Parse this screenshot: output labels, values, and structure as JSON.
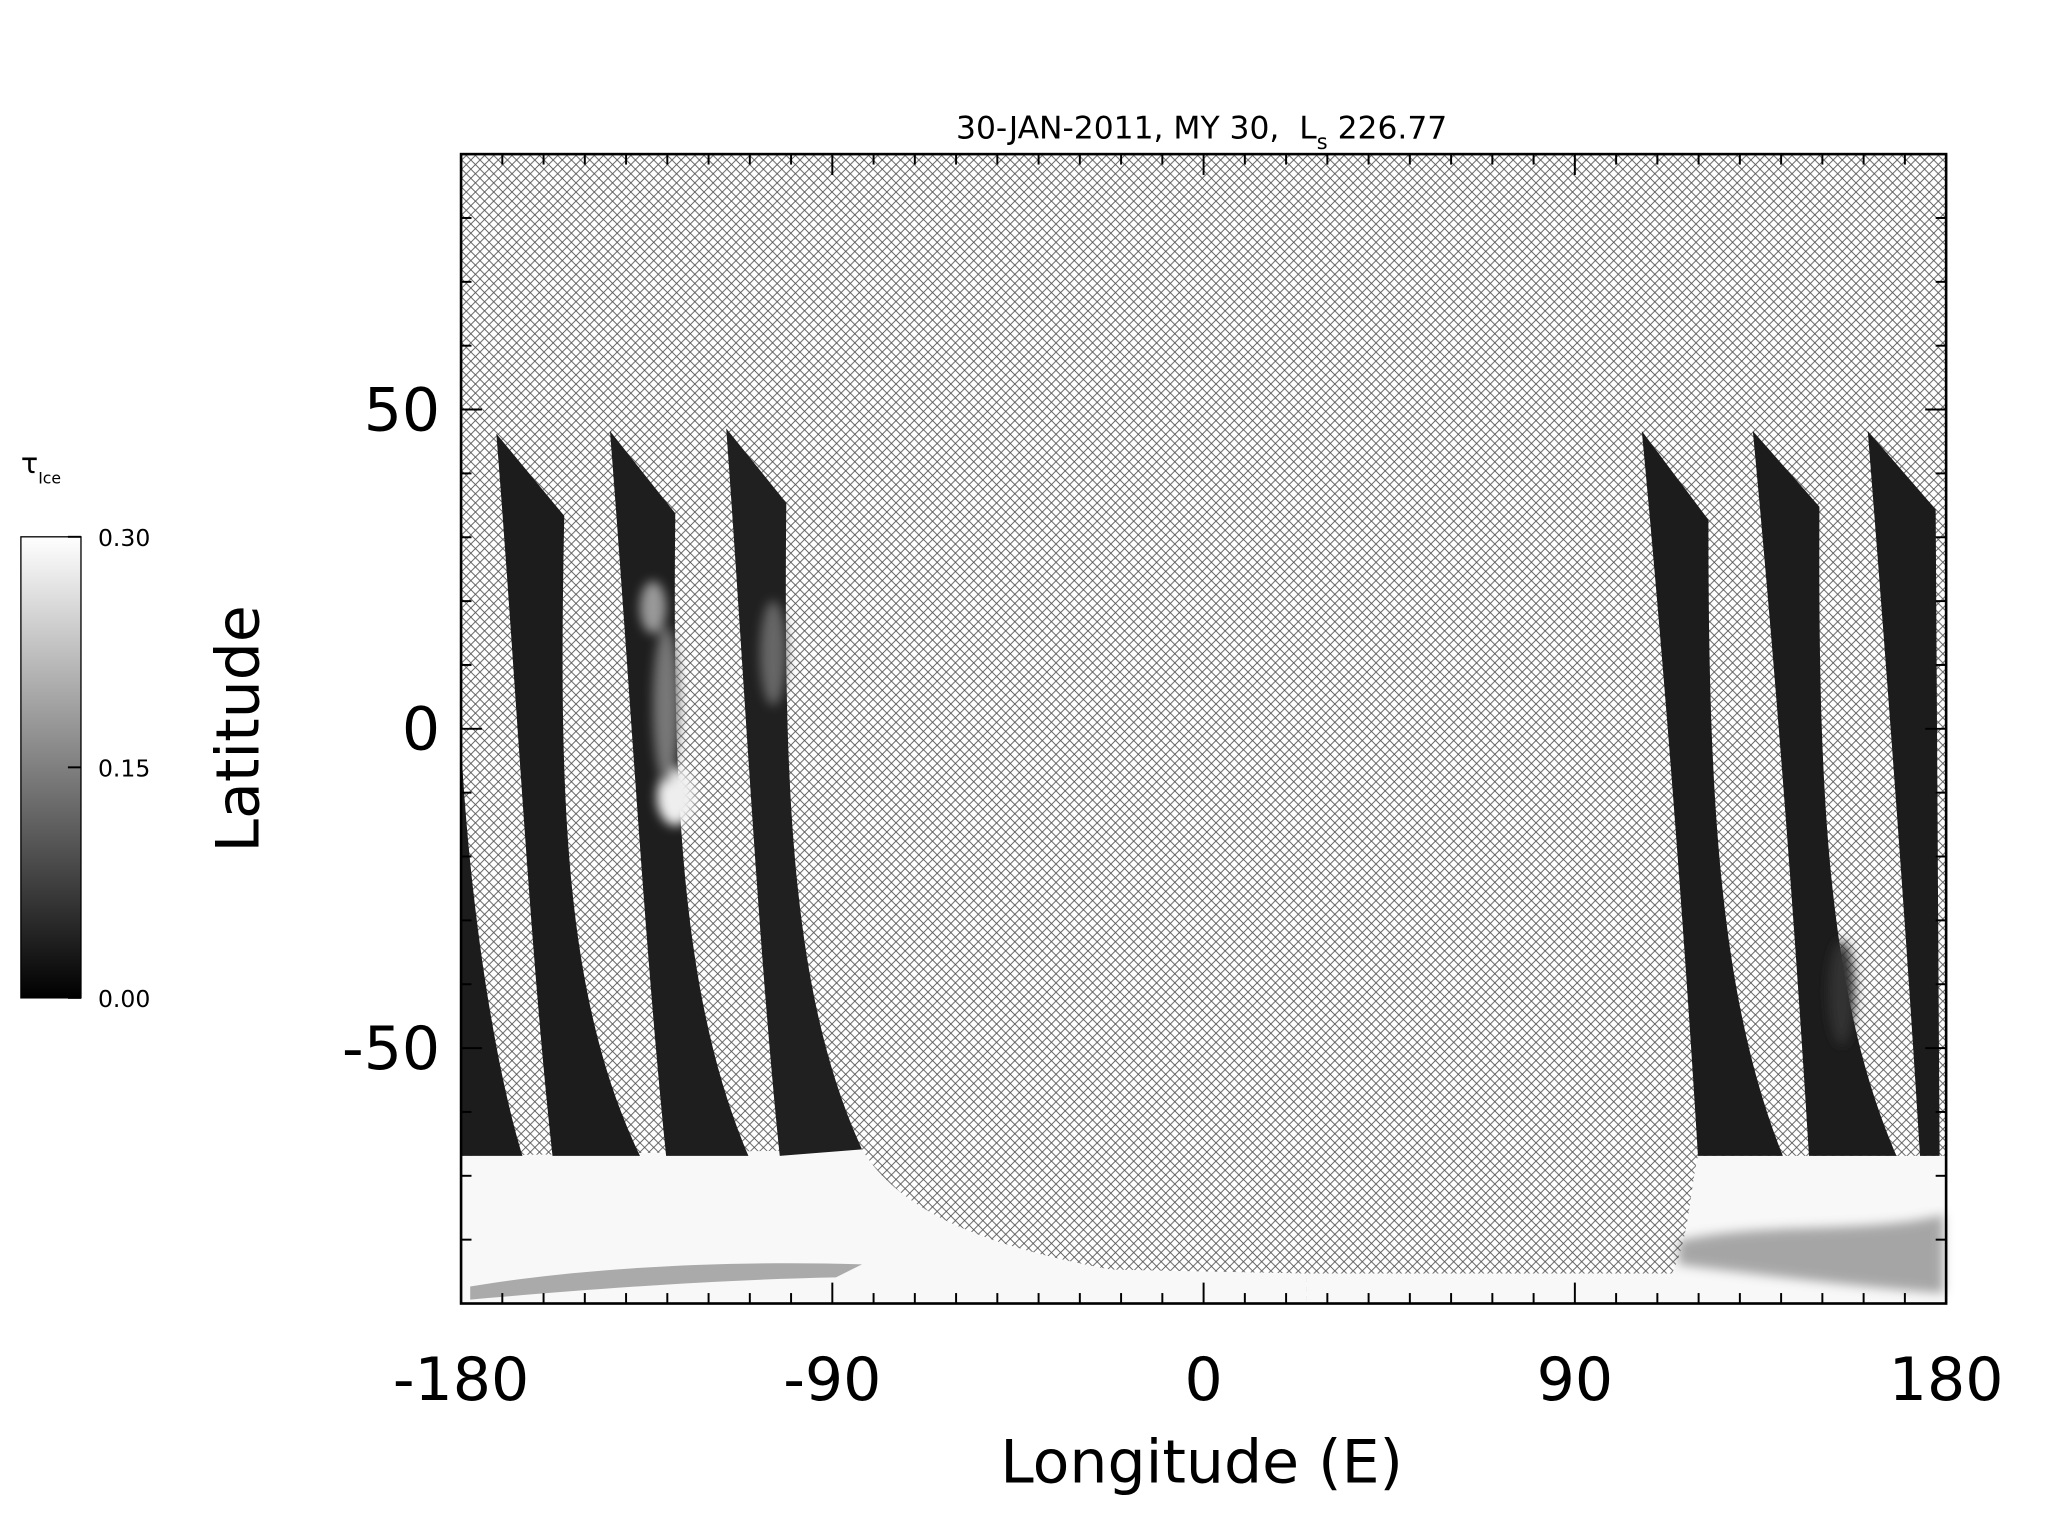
{
  "chart_data": {
    "type": "map",
    "title": "30-JAN-2011, MY 30,  L",
    "title_subscript": "s",
    "title_suffix": "226.77",
    "x_label": "Longitude (E)",
    "y_label": "Latitude",
    "xlim": [
      -180,
      180
    ],
    "xticks": [
      -180,
      -90,
      0,
      90,
      180
    ],
    "xminorticks": [
      -170,
      -160,
      -150,
      -140,
      -130,
      -120,
      -110,
      -100,
      -80,
      -70,
      -60,
      -50,
      -40,
      -30,
      -20,
      -10,
      10,
      20,
      30,
      40,
      50,
      60,
      70,
      80,
      100,
      110,
      120,
      130,
      140,
      150,
      160,
      170
    ],
    "ylim": [
      -90,
      90
    ],
    "yticks": [
      -50,
      0,
      50
    ],
    "yminorticks": [
      -80,
      -70,
      -60,
      -40,
      -30,
      -20,
      -10,
      10,
      20,
      30,
      40,
      60,
      70,
      80
    ],
    "colorbar": {
      "label": "τ",
      "label_subscript": "Ice",
      "lim": [
        0,
        0.3
      ],
      "colors": [
        "#000000",
        "#ffffff"
      ],
      "ticks": [
        {
          "value": 0,
          "label": "0.00"
        },
        {
          "value": 0.15,
          "label": "0.15"
        },
        {
          "value": 0.3,
          "label": "0.30"
        }
      ]
    }
  }
}
